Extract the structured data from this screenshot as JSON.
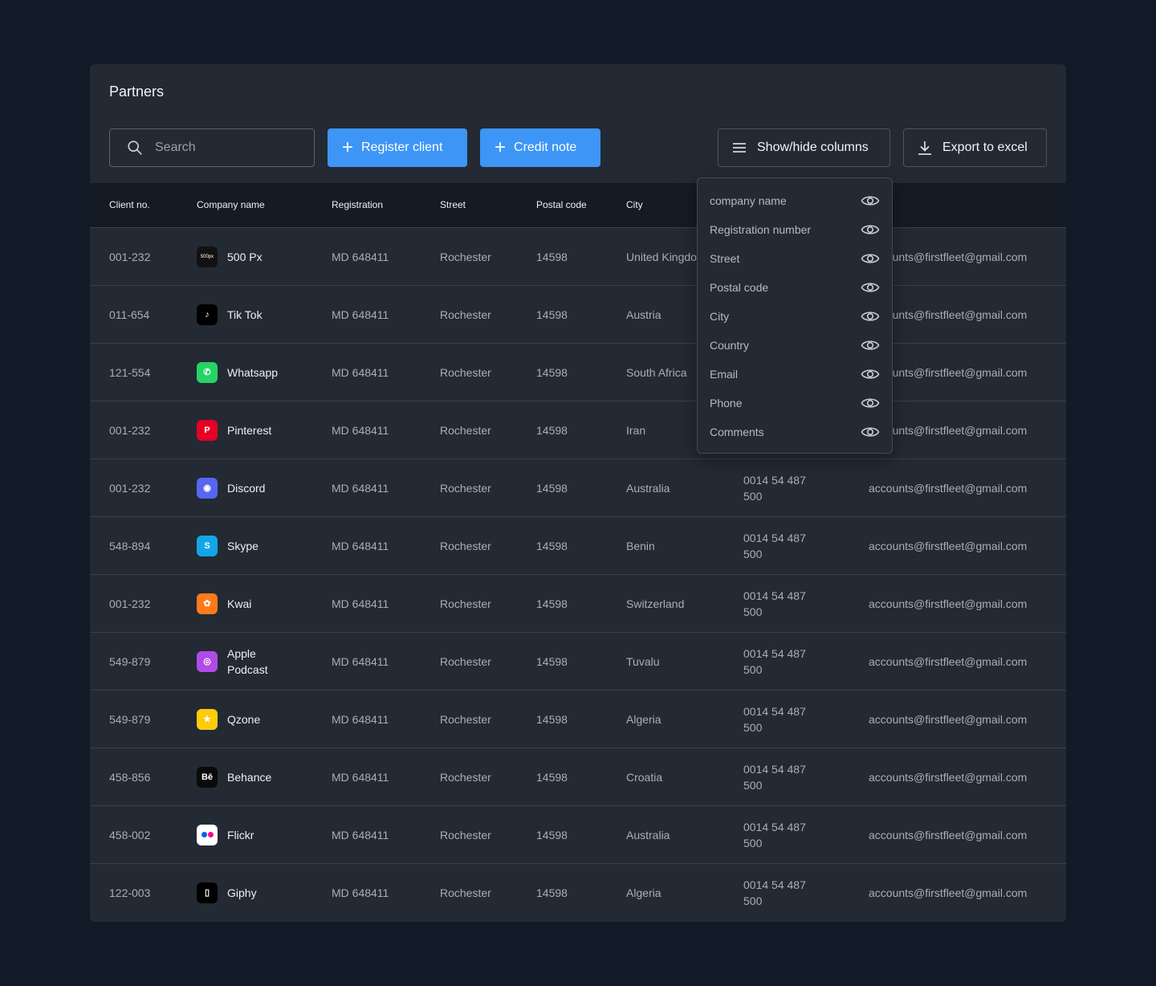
{
  "title": "Partners",
  "toolbar": {
    "search_placeholder": "Search",
    "register_label": "Register client",
    "credit_label": "Credit note",
    "columns_label": "Show/hide columns",
    "export_label": "Export to excel"
  },
  "columns": {
    "client_no": "Client no.",
    "company": "Company name",
    "registration": "Registration",
    "street": "Street",
    "postal": "Postal code",
    "city": "City"
  },
  "column_menu": [
    {
      "label": "company name",
      "visible": true
    },
    {
      "label": "Registration number",
      "visible": true
    },
    {
      "label": "Street",
      "visible": true
    },
    {
      "label": "Postal code",
      "visible": true
    },
    {
      "label": "City",
      "visible": true
    },
    {
      "label": "Country",
      "visible": true
    },
    {
      "label": "Email",
      "visible": true
    },
    {
      "label": "Phone",
      "visible": true
    },
    {
      "label": "Comments",
      "visible": true
    }
  ],
  "rows": [
    {
      "no": "001-232",
      "company": "500 Px",
      "logo": "500px-icon",
      "logo_bg": "#111111",
      "logo_text": "500px",
      "reg": "MD 648411",
      "street": "Rochester",
      "postal": "14598",
      "city": "United Kingdom",
      "phone": "",
      "email": "accounts@firstfleet@gmail.com"
    },
    {
      "no": "011-654",
      "company": "Tik Tok",
      "logo": "tiktok-icon",
      "logo_bg": "#000000",
      "logo_text": "♪",
      "reg": "MD 648411",
      "street": "Rochester",
      "postal": "14598",
      "city": "Austria",
      "phone": "",
      "email": "accounts@firstfleet@gmail.com"
    },
    {
      "no": "121-554",
      "company": "Whatsapp",
      "logo": "whatsapp-icon",
      "logo_bg": "#25d366",
      "logo_text": "✆",
      "reg": "MD 648411",
      "street": "Rochester",
      "postal": "14598",
      "city": "South Africa",
      "phone": "",
      "email": "accounts@firstfleet@gmail.com"
    },
    {
      "no": "001-232",
      "company": "Pinterest",
      "logo": "pinterest-icon",
      "logo_bg": "#e60023",
      "logo_text": "P",
      "reg": "MD 648411",
      "street": "Rochester",
      "postal": "14598",
      "city": "Iran",
      "phone": "",
      "email": "accounts@firstfleet@gmail.com"
    },
    {
      "no": "001-232",
      "company": "Discord",
      "logo": "discord-icon",
      "logo_bg": "#5865f2",
      "logo_text": "◉",
      "reg": "MD 648411",
      "street": "Rochester",
      "postal": "14598",
      "city": "Australia",
      "phone": "0014 54 487 500",
      "email": "accounts@firstfleet@gmail.com"
    },
    {
      "no": "548-894",
      "company": "Skype",
      "logo": "skype-icon",
      "logo_bg": "#12a6e8",
      "logo_text": "S",
      "reg": "MD 648411",
      "street": "Rochester",
      "postal": "14598",
      "city": "Benin",
      "phone": "0014 54 487 500",
      "email": "accounts@firstfleet@gmail.com"
    },
    {
      "no": "001-232",
      "company": "Kwai",
      "logo": "kwai-icon",
      "logo_bg": "#ff7a1a",
      "logo_text": "✿",
      "reg": "MD 648411",
      "street": "Rochester",
      "postal": "14598",
      "city": "Switzerland",
      "phone": "0014 54 487 500",
      "email": "accounts@firstfleet@gmail.com"
    },
    {
      "no": "549-879",
      "company": "Apple Podcast",
      "logo": "apple-podcast-icon",
      "logo_bg": "#b14be8",
      "logo_text": "◎",
      "reg": "MD 648411",
      "street": "Rochester",
      "postal": "14598",
      "city": "Tuvalu",
      "phone": "0014 54 487 500",
      "email": "accounts@firstfleet@gmail.com"
    },
    {
      "no": "549-879",
      "company": "Qzone",
      "logo": "qzone-icon",
      "logo_bg": "#fecc0a",
      "logo_text": "★",
      "reg": "MD 648411",
      "street": "Rochester",
      "postal": "14598",
      "city": "Algeria",
      "phone": "0014 54 487 500",
      "email": "accounts@firstfleet@gmail.com"
    },
    {
      "no": "458-856",
      "company": "Behance",
      "logo": "behance-icon",
      "logo_bg": "#0a0a0a",
      "logo_text": "Bē",
      "reg": "MD 648411",
      "street": "Rochester",
      "postal": "14598",
      "city": "Croatia",
      "phone": "0014 54 487 500",
      "email": "accounts@firstfleet@gmail.com"
    },
    {
      "no": "458-002",
      "company": "Flickr",
      "logo": "flickr-icon",
      "logo_bg": "#ffffff",
      "logo_text": "",
      "reg": "MD 648411",
      "street": "Rochester",
      "postal": "14598",
      "city": "Australia",
      "phone": "0014 54 487 500",
      "email": "accounts@firstfleet@gmail.com"
    },
    {
      "no": "122-003",
      "company": "Giphy",
      "logo": "giphy-icon",
      "logo_bg": "#000000",
      "logo_text": "▯",
      "reg": "MD 648411",
      "street": "Rochester",
      "postal": "14598",
      "city": "Algeria",
      "phone": "0014 54 487 500",
      "email": "accounts@firstfleet@gmail.com"
    }
  ],
  "colors": {
    "background": "#131a27",
    "panel": "#232a33",
    "table_header": "#151b25",
    "primary": "#3d95f5"
  }
}
